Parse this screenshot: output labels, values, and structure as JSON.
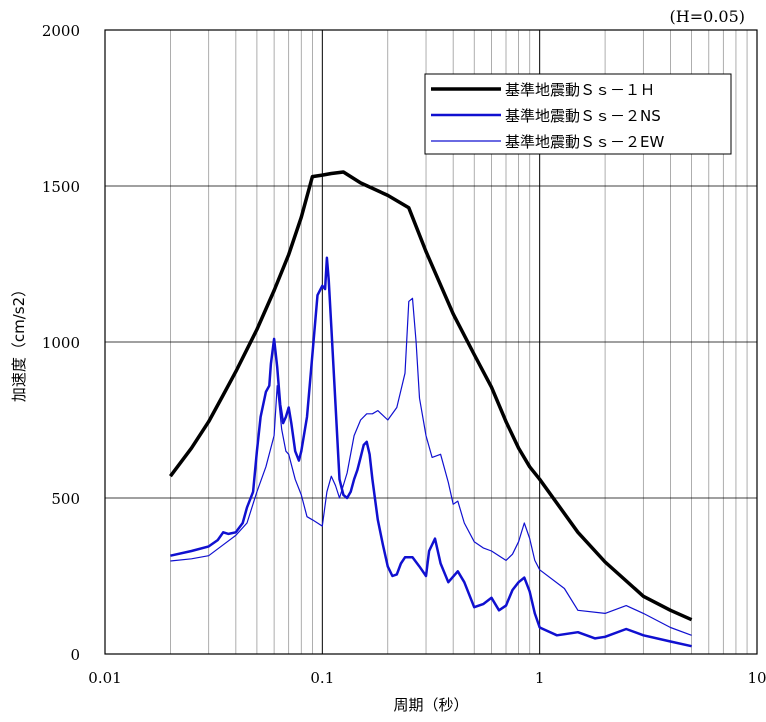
{
  "chart_data": {
    "type": "line",
    "annotation": "(H=0.05)",
    "xlabel": "周期（秒）",
    "ylabel": "加速度（cm/s2）",
    "x_scale": "log",
    "xlim": [
      0.01,
      10
    ],
    "ylim": [
      0,
      2000
    ],
    "x_ticks": [
      {
        "value": 0.01,
        "label": "0.01"
      },
      {
        "value": 0.1,
        "label": "0.1"
      },
      {
        "value": 1,
        "label": "1"
      },
      {
        "value": 10,
        "label": "10"
      }
    ],
    "y_ticks": [
      {
        "value": 0,
        "label": "0"
      },
      {
        "value": 500,
        "label": "500"
      },
      {
        "value": 1000,
        "label": "1000"
      },
      {
        "value": 1500,
        "label": "1500"
      },
      {
        "value": 2000,
        "label": "2000"
      }
    ],
    "grid": true,
    "legend_position": "top-right",
    "series": [
      {
        "name": "基準地震動Ｓｓ－１Ｈ",
        "color": "#000000",
        "line_width": 3.5,
        "points": [
          [
            0.02,
            570
          ],
          [
            0.025,
            660
          ],
          [
            0.03,
            745
          ],
          [
            0.035,
            830
          ],
          [
            0.04,
            905
          ],
          [
            0.05,
            1040
          ],
          [
            0.06,
            1165
          ],
          [
            0.07,
            1280
          ],
          [
            0.08,
            1400
          ],
          [
            0.09,
            1530
          ],
          [
            0.1,
            1535
          ],
          [
            0.11,
            1540
          ],
          [
            0.125,
            1545
          ],
          [
            0.15,
            1510
          ],
          [
            0.2,
            1470
          ],
          [
            0.25,
            1430
          ],
          [
            0.3,
            1290
          ],
          [
            0.4,
            1090
          ],
          [
            0.5,
            960
          ],
          [
            0.6,
            855
          ],
          [
            0.7,
            745
          ],
          [
            0.8,
            660
          ],
          [
            0.9,
            600
          ],
          [
            1.0,
            560
          ],
          [
            1.5,
            390
          ],
          [
            2.0,
            295
          ],
          [
            3.0,
            185
          ],
          [
            4.0,
            140
          ],
          [
            5.0,
            110
          ]
        ]
      },
      {
        "name": "基準地震動Ｓｓ－２NS",
        "color": "#1010d0",
        "line_width": 2.5,
        "points": [
          [
            0.02,
            315
          ],
          [
            0.025,
            330
          ],
          [
            0.03,
            345
          ],
          [
            0.033,
            365
          ],
          [
            0.035,
            390
          ],
          [
            0.037,
            385
          ],
          [
            0.04,
            390
          ],
          [
            0.043,
            420
          ],
          [
            0.045,
            470
          ],
          [
            0.048,
            520
          ],
          [
            0.05,
            650
          ],
          [
            0.052,
            760
          ],
          [
            0.055,
            840
          ],
          [
            0.057,
            860
          ],
          [
            0.058,
            930
          ],
          [
            0.06,
            1010
          ],
          [
            0.062,
            920
          ],
          [
            0.064,
            800
          ],
          [
            0.066,
            740
          ],
          [
            0.068,
            760
          ],
          [
            0.07,
            790
          ],
          [
            0.072,
            740
          ],
          [
            0.075,
            650
          ],
          [
            0.078,
            620
          ],
          [
            0.08,
            650
          ],
          [
            0.085,
            760
          ],
          [
            0.09,
            960
          ],
          [
            0.095,
            1150
          ],
          [
            0.1,
            1180
          ],
          [
            0.103,
            1170
          ],
          [
            0.105,
            1270
          ],
          [
            0.107,
            1200
          ],
          [
            0.11,
            1050
          ],
          [
            0.115,
            800
          ],
          [
            0.12,
            560
          ],
          [
            0.125,
            510
          ],
          [
            0.13,
            500
          ],
          [
            0.135,
            520
          ],
          [
            0.14,
            560
          ],
          [
            0.145,
            590
          ],
          [
            0.15,
            630
          ],
          [
            0.155,
            670
          ],
          [
            0.16,
            680
          ],
          [
            0.165,
            640
          ],
          [
            0.17,
            560
          ],
          [
            0.18,
            430
          ],
          [
            0.19,
            350
          ],
          [
            0.2,
            280
          ],
          [
            0.21,
            250
          ],
          [
            0.22,
            255
          ],
          [
            0.23,
            290
          ],
          [
            0.24,
            310
          ],
          [
            0.26,
            310
          ],
          [
            0.28,
            280
          ],
          [
            0.3,
            250
          ],
          [
            0.31,
            330
          ],
          [
            0.33,
            370
          ],
          [
            0.35,
            290
          ],
          [
            0.38,
            230
          ],
          [
            0.42,
            265
          ],
          [
            0.45,
            230
          ],
          [
            0.5,
            150
          ],
          [
            0.55,
            160
          ],
          [
            0.6,
            180
          ],
          [
            0.65,
            140
          ],
          [
            0.7,
            155
          ],
          [
            0.75,
            205
          ],
          [
            0.8,
            230
          ],
          [
            0.85,
            245
          ],
          [
            0.9,
            200
          ],
          [
            0.95,
            130
          ],
          [
            1.0,
            85
          ],
          [
            1.2,
            60
          ],
          [
            1.5,
            70
          ],
          [
            1.8,
            50
          ],
          [
            2.0,
            55
          ],
          [
            2.5,
            80
          ],
          [
            3.0,
            60
          ],
          [
            4.0,
            40
          ],
          [
            5.0,
            25
          ]
        ]
      },
      {
        "name": "基準地震動Ｓｓ－２EW",
        "color": "#1010d0",
        "line_width": 1.2,
        "points": [
          [
            0.02,
            298
          ],
          [
            0.025,
            305
          ],
          [
            0.03,
            315
          ],
          [
            0.035,
            350
          ],
          [
            0.04,
            380
          ],
          [
            0.045,
            420
          ],
          [
            0.05,
            520
          ],
          [
            0.055,
            600
          ],
          [
            0.06,
            700
          ],
          [
            0.062,
            860
          ],
          [
            0.065,
            720
          ],
          [
            0.068,
            650
          ],
          [
            0.07,
            640
          ],
          [
            0.075,
            560
          ],
          [
            0.08,
            510
          ],
          [
            0.085,
            440
          ],
          [
            0.09,
            430
          ],
          [
            0.095,
            420
          ],
          [
            0.1,
            410
          ],
          [
            0.105,
            520
          ],
          [
            0.11,
            570
          ],
          [
            0.115,
            540
          ],
          [
            0.12,
            500
          ],
          [
            0.13,
            580
          ],
          [
            0.14,
            700
          ],
          [
            0.15,
            750
          ],
          [
            0.16,
            770
          ],
          [
            0.17,
            770
          ],
          [
            0.18,
            780
          ],
          [
            0.2,
            750
          ],
          [
            0.22,
            790
          ],
          [
            0.24,
            900
          ],
          [
            0.25,
            1130
          ],
          [
            0.26,
            1140
          ],
          [
            0.27,
            1000
          ],
          [
            0.28,
            820
          ],
          [
            0.3,
            700
          ],
          [
            0.32,
            630
          ],
          [
            0.35,
            640
          ],
          [
            0.38,
            550
          ],
          [
            0.4,
            480
          ],
          [
            0.42,
            490
          ],
          [
            0.45,
            420
          ],
          [
            0.5,
            360
          ],
          [
            0.55,
            340
          ],
          [
            0.6,
            330
          ],
          [
            0.7,
            300
          ],
          [
            0.75,
            320
          ],
          [
            0.8,
            360
          ],
          [
            0.85,
            420
          ],
          [
            0.9,
            370
          ],
          [
            0.95,
            300
          ],
          [
            1.0,
            270
          ],
          [
            1.3,
            210
          ],
          [
            1.5,
            140
          ],
          [
            2.0,
            130
          ],
          [
            2.5,
            155
          ],
          [
            3.0,
            130
          ],
          [
            4.0,
            85
          ],
          [
            5.0,
            60
          ]
        ]
      }
    ]
  }
}
